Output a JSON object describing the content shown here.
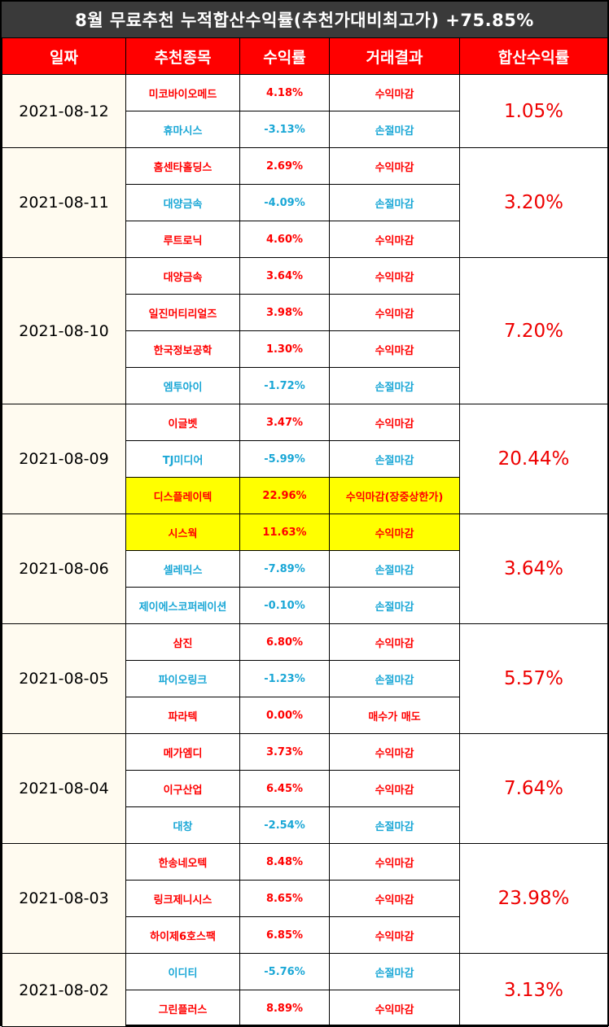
{
  "title": "8월 무료추천 누적합산수익률(추천가대비최고가) +75.85%",
  "headers": [
    "일짜",
    "추천종목",
    "수익률",
    "거래결과",
    "합산수익률"
  ],
  "colors": {
    "profit": "#ff0000",
    "loss": "#1aa7d6",
    "highlight": "#ffff00",
    "header": "#ff0000",
    "title_bg": "#3a3a3a"
  },
  "groups": [
    {
      "date": "2021-08-12",
      "total": "1.05%",
      "rows": [
        {
          "stock": "미코바이오메드",
          "rate": "4.18%",
          "result": "수익마감",
          "type": "profit",
          "highlight": false
        },
        {
          "stock": "휴마시스",
          "rate": "-3.13%",
          "result": "손절마감",
          "type": "loss",
          "highlight": false
        }
      ]
    },
    {
      "date": "2021-08-11",
      "total": "3.20%",
      "rows": [
        {
          "stock": "홈센타홀딩스",
          "rate": "2.69%",
          "result": "수익마감",
          "type": "profit",
          "highlight": false
        },
        {
          "stock": "대양금속",
          "rate": "-4.09%",
          "result": "손절마감",
          "type": "loss",
          "highlight": false
        },
        {
          "stock": "루트로닉",
          "rate": "4.60%",
          "result": "수익마감",
          "type": "profit",
          "highlight": false
        }
      ]
    },
    {
      "date": "2021-08-10",
      "total": "7.20%",
      "rows": [
        {
          "stock": "대양금속",
          "rate": "3.64%",
          "result": "수익마감",
          "type": "profit",
          "highlight": false
        },
        {
          "stock": "일진머티리얼즈",
          "rate": "3.98%",
          "result": "수익마감",
          "type": "profit",
          "highlight": false
        },
        {
          "stock": "한국정보공학",
          "rate": "1.30%",
          "result": "수익마감",
          "type": "profit",
          "highlight": false
        },
        {
          "stock": "엠투아이",
          "rate": "-1.72%",
          "result": "손절마감",
          "type": "loss",
          "highlight": false
        }
      ]
    },
    {
      "date": "2021-08-09",
      "total": "20.44%",
      "rows": [
        {
          "stock": "이글벳",
          "rate": "3.47%",
          "result": "수익마감",
          "type": "profit",
          "highlight": false
        },
        {
          "stock": "TJ미디어",
          "rate": "-5.99%",
          "result": "손절마감",
          "type": "loss",
          "highlight": false
        },
        {
          "stock": "디스플레이텍",
          "rate": "22.96%",
          "result": "수익마감(장중상한가)",
          "type": "profit",
          "highlight": true
        }
      ]
    },
    {
      "date": "2021-08-06",
      "total": "3.64%",
      "rows": [
        {
          "stock": "시스웍",
          "rate": "11.63%",
          "result": "수익마감",
          "type": "profit",
          "highlight": true
        },
        {
          "stock": "셀레믹스",
          "rate": "-7.89%",
          "result": "손절마감",
          "type": "loss",
          "highlight": false
        },
        {
          "stock": "제이에스코퍼레이션",
          "rate": "-0.10%",
          "result": "손절마감",
          "type": "loss",
          "highlight": false
        }
      ]
    },
    {
      "date": "2021-08-05",
      "total": "5.57%",
      "rows": [
        {
          "stock": "삼진",
          "rate": "6.80%",
          "result": "수익마감",
          "type": "profit",
          "highlight": false
        },
        {
          "stock": "파이오링크",
          "rate": "-1.23%",
          "result": "손절마감",
          "type": "loss",
          "highlight": false
        },
        {
          "stock": "파라텍",
          "rate": "0.00%",
          "result": "매수가 매도",
          "type": "profit",
          "highlight": false
        }
      ]
    },
    {
      "date": "2021-08-04",
      "total": "7.64%",
      "rows": [
        {
          "stock": "메가엠디",
          "rate": "3.73%",
          "result": "수익마감",
          "type": "profit",
          "highlight": false
        },
        {
          "stock": "이구산업",
          "rate": "6.45%",
          "result": "수익마감",
          "type": "profit",
          "highlight": false
        },
        {
          "stock": "대창",
          "rate": "-2.54%",
          "result": "손절마감",
          "type": "loss",
          "highlight": false
        }
      ]
    },
    {
      "date": "2021-08-03",
      "total": "23.98%",
      "rows": [
        {
          "stock": "한송네오텍",
          "rate": "8.48%",
          "result": "수익마감",
          "type": "profit",
          "highlight": false
        },
        {
          "stock": "링크제니시스",
          "rate": "8.65%",
          "result": "수익마감",
          "type": "profit",
          "highlight": false
        },
        {
          "stock": "하이제6호스팩",
          "rate": "6.85%",
          "result": "수익마감",
          "type": "profit",
          "highlight": false
        }
      ]
    },
    {
      "date": "2021-08-02",
      "total": "3.13%",
      "rows": [
        {
          "stock": "이디티",
          "rate": "-5.76%",
          "result": "손절마감",
          "type": "loss",
          "highlight": false
        },
        {
          "stock": "그린플러스",
          "rate": "8.89%",
          "result": "수익마감",
          "type": "profit",
          "highlight": false
        }
      ]
    }
  ]
}
